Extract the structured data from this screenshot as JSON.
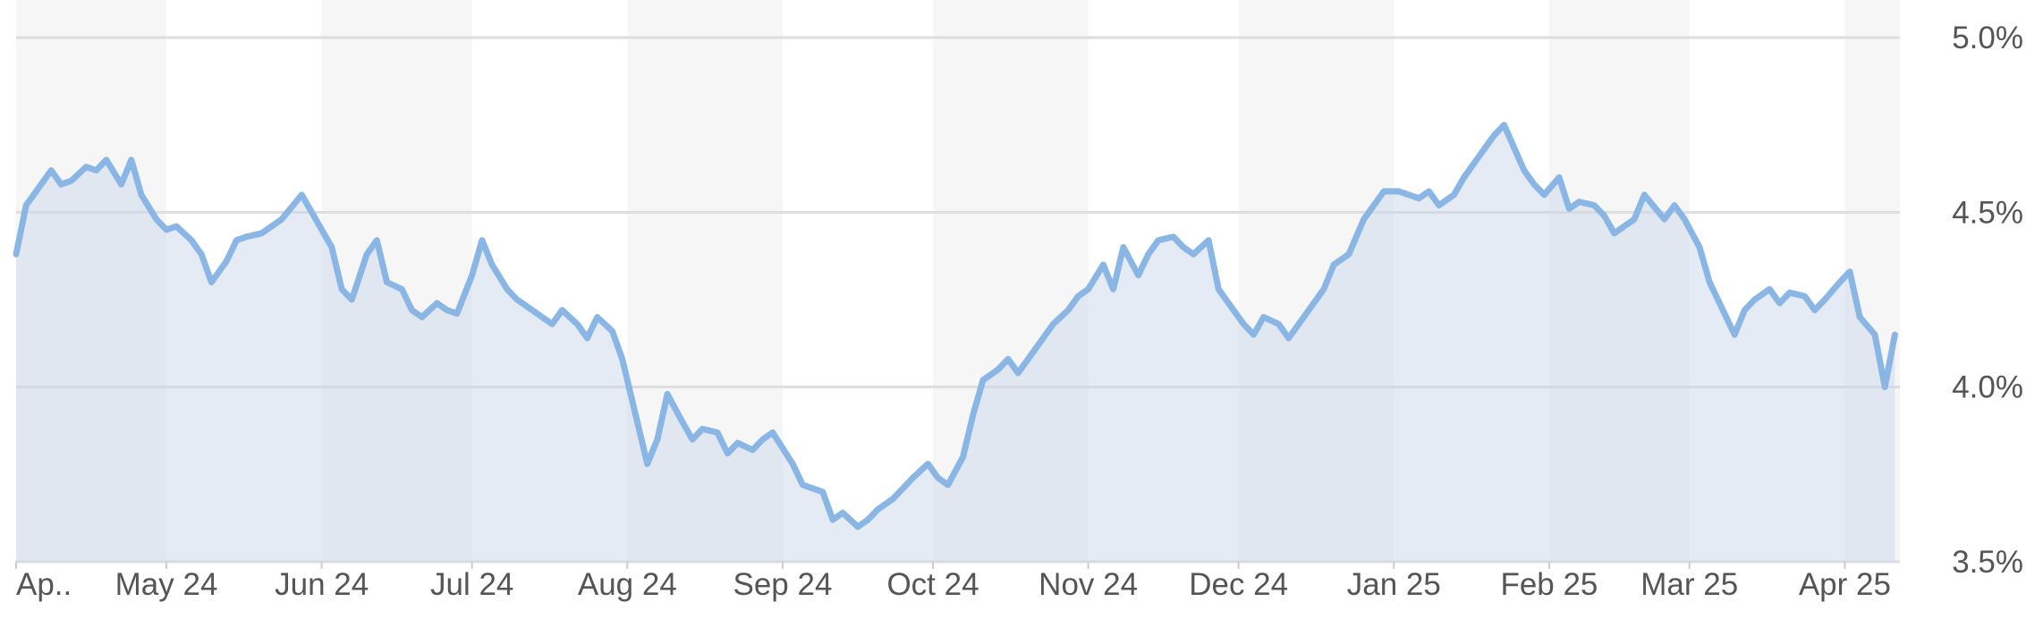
{
  "chart_data": {
    "type": "area",
    "title": "",
    "xlabel": "",
    "ylabel": "",
    "ylim": [
      3.5,
      5.0
    ],
    "yticks": [
      {
        "value": 3.5,
        "label": "3.5%"
      },
      {
        "value": 4.0,
        "label": "4.0%"
      },
      {
        "value": 4.5,
        "label": "4.5%"
      },
      {
        "value": 5.0,
        "label": "5.0%"
      }
    ],
    "xlim": [
      "2024-04-01",
      "2025-04-12"
    ],
    "xticks": [
      {
        "date": "2024-04-01",
        "label": "Ap.."
      },
      {
        "date": "2024-05-01",
        "label": "May 24"
      },
      {
        "date": "2024-06-01",
        "label": "Jun 24"
      },
      {
        "date": "2024-07-01",
        "label": "Jul 24"
      },
      {
        "date": "2024-08-01",
        "label": "Aug 24"
      },
      {
        "date": "2024-09-01",
        "label": "Sep 24"
      },
      {
        "date": "2024-10-01",
        "label": "Oct 24"
      },
      {
        "date": "2024-11-01",
        "label": "Nov 24"
      },
      {
        "date": "2024-12-01",
        "label": "Dec 24"
      },
      {
        "date": "2025-01-01",
        "label": "Jan 25"
      },
      {
        "date": "2025-02-01",
        "label": "Feb 25"
      },
      {
        "date": "2025-03-01",
        "label": "Mar 25"
      },
      {
        "date": "2025-04-01",
        "label": "Apr 25"
      }
    ],
    "grid": true,
    "colors": {
      "line": "#8ab6e6",
      "fill": "#c9d8ea",
      "band": "#f6f6f6",
      "grid": "#dddddd",
      "tick": "#555555"
    },
    "series": [
      {
        "x": [
          "2024-04-01",
          "2024-04-03",
          "2024-04-05",
          "2024-04-08",
          "2024-04-10",
          "2024-04-12",
          "2024-04-15",
          "2024-04-17",
          "2024-04-19",
          "2024-04-22",
          "2024-04-24",
          "2024-04-26",
          "2024-04-29",
          "2024-05-01",
          "2024-05-03",
          "2024-05-06",
          "2024-05-08",
          "2024-05-10",
          "2024-05-13",
          "2024-05-15",
          "2024-05-17",
          "2024-05-20",
          "2024-05-22",
          "2024-05-24",
          "2024-05-28",
          "2024-05-30",
          "2024-06-03",
          "2024-06-05",
          "2024-06-07",
          "2024-06-10",
          "2024-06-12",
          "2024-06-14",
          "2024-06-17",
          "2024-06-19",
          "2024-06-21",
          "2024-06-24",
          "2024-06-26",
          "2024-06-28",
          "2024-07-01",
          "2024-07-03",
          "2024-07-05",
          "2024-07-08",
          "2024-07-10",
          "2024-07-12",
          "2024-07-15",
          "2024-07-17",
          "2024-07-19",
          "2024-07-22",
          "2024-07-24",
          "2024-07-26",
          "2024-07-29",
          "2024-07-31",
          "2024-08-02",
          "2024-08-05",
          "2024-08-07",
          "2024-08-09",
          "2024-08-12",
          "2024-08-14",
          "2024-08-16",
          "2024-08-19",
          "2024-08-21",
          "2024-08-23",
          "2024-08-26",
          "2024-08-28",
          "2024-08-30",
          "2024-09-03",
          "2024-09-05",
          "2024-09-09",
          "2024-09-11",
          "2024-09-13",
          "2024-09-16",
          "2024-09-18",
          "2024-09-20",
          "2024-09-23",
          "2024-09-25",
          "2024-09-27",
          "2024-09-30",
          "2024-10-02",
          "2024-10-04",
          "2024-10-07",
          "2024-10-09",
          "2024-10-11",
          "2024-10-14",
          "2024-10-16",
          "2024-10-18",
          "2024-10-21",
          "2024-10-23",
          "2024-10-25",
          "2024-10-28",
          "2024-10-30",
          "2024-11-01",
          "2024-11-04",
          "2024-11-06",
          "2024-11-08",
          "2024-11-11",
          "2024-11-13",
          "2024-11-15",
          "2024-11-18",
          "2024-11-20",
          "2024-11-22",
          "2024-11-25",
          "2024-11-27",
          "2024-11-29",
          "2024-12-02",
          "2024-12-04",
          "2024-12-06",
          "2024-12-09",
          "2024-12-11",
          "2024-12-13",
          "2024-12-16",
          "2024-12-18",
          "2024-12-20",
          "2024-12-23",
          "2024-12-26",
          "2024-12-30",
          "2025-01-02",
          "2025-01-06",
          "2025-01-08",
          "2025-01-10",
          "2025-01-13",
          "2025-01-15",
          "2025-01-17",
          "2025-01-21",
          "2025-01-23",
          "2025-01-27",
          "2025-01-29",
          "2025-01-31",
          "2025-02-03",
          "2025-02-05",
          "2025-02-07",
          "2025-02-10",
          "2025-02-12",
          "2025-02-14",
          "2025-02-18",
          "2025-02-20",
          "2025-02-24",
          "2025-02-26",
          "2025-02-28",
          "2025-03-03",
          "2025-03-05",
          "2025-03-07",
          "2025-03-10",
          "2025-03-12",
          "2025-03-14",
          "2025-03-17",
          "2025-03-19",
          "2025-03-21",
          "2025-03-24",
          "2025-03-26",
          "2025-03-28",
          "2025-03-31",
          "2025-04-02",
          "2025-04-04",
          "2025-04-07",
          "2025-04-09",
          "2025-04-11"
        ],
        "values": [
          4.38,
          4.52,
          4.56,
          4.62,
          4.58,
          4.59,
          4.63,
          4.62,
          4.65,
          4.58,
          4.65,
          4.55,
          4.48,
          4.45,
          4.46,
          4.42,
          4.38,
          4.3,
          4.36,
          4.42,
          4.43,
          4.44,
          4.46,
          4.48,
          4.55,
          4.5,
          4.4,
          4.28,
          4.25,
          4.38,
          4.42,
          4.3,
          4.28,
          4.22,
          4.2,
          4.24,
          4.22,
          4.21,
          4.32,
          4.42,
          4.35,
          4.28,
          4.25,
          4.23,
          4.2,
          4.18,
          4.22,
          4.18,
          4.14,
          4.2,
          4.16,
          4.08,
          3.96,
          3.78,
          3.85,
          3.98,
          3.9,
          3.85,
          3.88,
          3.87,
          3.81,
          3.84,
          3.82,
          3.85,
          3.87,
          3.78,
          3.72,
          3.7,
          3.62,
          3.64,
          3.6,
          3.62,
          3.65,
          3.68,
          3.71,
          3.74,
          3.78,
          3.74,
          3.72,
          3.8,
          3.92,
          4.02,
          4.05,
          4.08,
          4.04,
          4.1,
          4.14,
          4.18,
          4.22,
          4.26,
          4.28,
          4.35,
          4.28,
          4.4,
          4.32,
          4.38,
          4.42,
          4.43,
          4.4,
          4.38,
          4.42,
          4.28,
          4.24,
          4.18,
          4.15,
          4.2,
          4.18,
          4.14,
          4.18,
          4.24,
          4.28,
          4.35,
          4.38,
          4.48,
          4.56,
          4.56,
          4.54,
          4.56,
          4.52,
          4.55,
          4.6,
          4.64,
          4.72,
          4.75,
          4.62,
          4.58,
          4.55,
          4.6,
          4.51,
          4.53,
          4.52,
          4.49,
          4.44,
          4.48,
          4.55,
          4.48,
          4.52,
          4.48,
          4.4,
          4.3,
          4.24,
          4.15,
          4.22,
          4.25,
          4.28,
          4.24,
          4.27,
          4.26,
          4.22,
          4.25,
          4.3,
          4.33,
          4.2,
          4.15,
          4.0,
          4.15
        ]
      }
    ]
  }
}
